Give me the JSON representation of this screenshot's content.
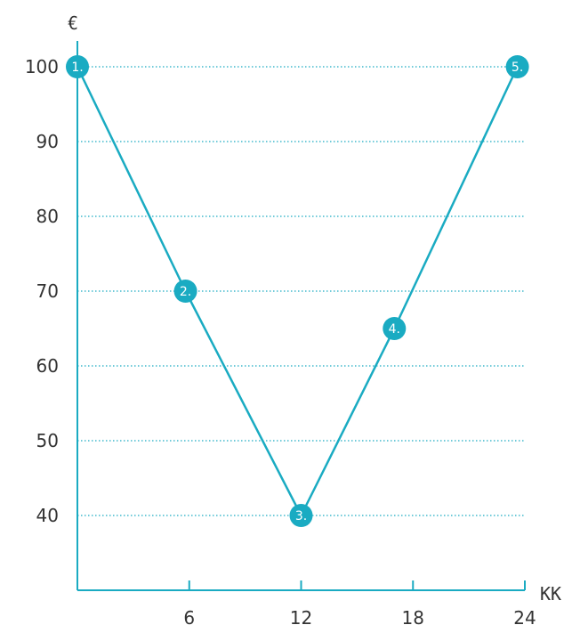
{
  "chart_data": {
    "type": "line",
    "xlabel": "KK",
    "ylabel": "€",
    "xlim": [
      0,
      24
    ],
    "ylim": [
      30,
      100
    ],
    "x_ticks": [
      6,
      12,
      18,
      24
    ],
    "y_ticks": [
      40,
      50,
      60,
      70,
      80,
      90,
      100
    ],
    "grid": "horizontal dotted",
    "line_color": "#1aabc2",
    "series": [
      {
        "points": [
          {
            "x": 0,
            "y": 100,
            "label": "1."
          },
          {
            "x": 5.8,
            "y": 70,
            "label": "2."
          },
          {
            "x": 12,
            "y": 40,
            "label": "3."
          },
          {
            "x": 17,
            "y": 65,
            "label": "4."
          },
          {
            "x": 23.6,
            "y": 100,
            "label": "5."
          }
        ]
      }
    ]
  }
}
